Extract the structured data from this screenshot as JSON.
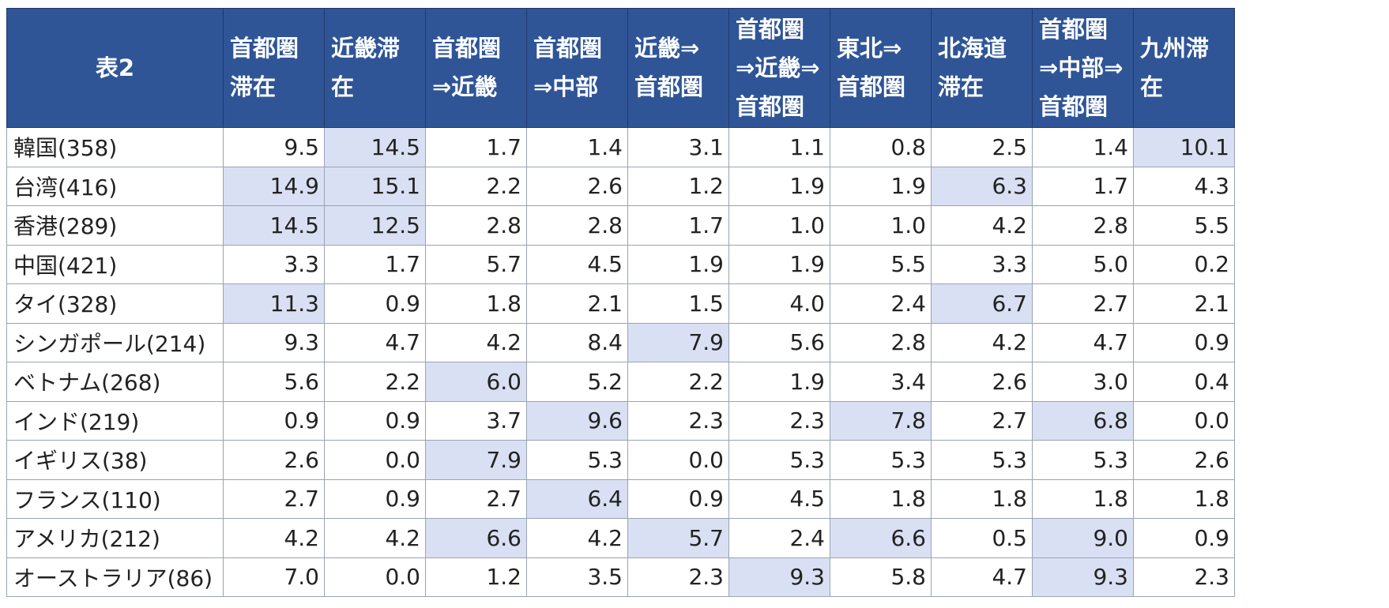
{
  "chart_data": {
    "type": "table",
    "title": "表2",
    "columns": [
      "首都圏滞在",
      "近畿滞在",
      "首都圏⇒近畿",
      "首都圏⇒中部",
      "近畿⇒首都圏",
      "首都圏⇒近畿⇒首都圏",
      "東北⇒首都圏",
      "北海道滞在",
      "首都圏⇒中部⇒首都圏",
      "九州滞在"
    ],
    "rows": [
      {
        "label": "韓国(358)",
        "values": [
          "9.5",
          "14.5",
          "1.7",
          "1.4",
          "3.1",
          "1.1",
          "0.8",
          "2.5",
          "1.4",
          "10.1"
        ],
        "highlight": [
          1,
          9
        ]
      },
      {
        "label": "台湾(416)",
        "values": [
          "14.9",
          "15.1",
          "2.2",
          "2.6",
          "1.2",
          "1.9",
          "1.9",
          "6.3",
          "1.7",
          "4.3"
        ],
        "highlight": [
          0,
          1,
          7
        ]
      },
      {
        "label": "香港(289)",
        "values": [
          "14.5",
          "12.5",
          "2.8",
          "2.8",
          "1.7",
          "1.0",
          "1.0",
          "4.2",
          "2.8",
          "5.5"
        ],
        "highlight": [
          0,
          1
        ]
      },
      {
        "label": "中国(421)",
        "values": [
          "3.3",
          "1.7",
          "5.7",
          "4.5",
          "1.9",
          "1.9",
          "5.5",
          "3.3",
          "5.0",
          "0.2"
        ],
        "highlight": []
      },
      {
        "label": "タイ(328)",
        "values": [
          "11.3",
          "0.9",
          "1.8",
          "2.1",
          "1.5",
          "4.0",
          "2.4",
          "6.7",
          "2.7",
          "2.1"
        ],
        "highlight": [
          0,
          7
        ]
      },
      {
        "label": "シンガポール(214)",
        "values": [
          "9.3",
          "4.7",
          "4.2",
          "8.4",
          "7.9",
          "5.6",
          "2.8",
          "4.2",
          "4.7",
          "0.9"
        ],
        "highlight": [
          4
        ]
      },
      {
        "label": "ベトナム(268)",
        "values": [
          "5.6",
          "2.2",
          "6.0",
          "5.2",
          "2.2",
          "1.9",
          "3.4",
          "2.6",
          "3.0",
          "0.4"
        ],
        "highlight": [
          2
        ]
      },
      {
        "label": "インド(219)",
        "values": [
          "0.9",
          "0.9",
          "3.7",
          "9.6",
          "2.3",
          "2.3",
          "7.8",
          "2.7",
          "6.8",
          "0.0"
        ],
        "highlight": [
          3,
          6,
          8
        ]
      },
      {
        "label": "イギリス(38)",
        "values": [
          "2.6",
          "0.0",
          "7.9",
          "5.3",
          "0.0",
          "5.3",
          "5.3",
          "5.3",
          "5.3",
          "2.6"
        ],
        "highlight": [
          2
        ]
      },
      {
        "label": "フランス(110)",
        "values": [
          "2.7",
          "0.9",
          "2.7",
          "6.4",
          "0.9",
          "4.5",
          "1.8",
          "1.8",
          "1.8",
          "1.8"
        ],
        "highlight": [
          3
        ]
      },
      {
        "label": "アメリカ(212)",
        "values": [
          "4.2",
          "4.2",
          "6.6",
          "4.2",
          "5.7",
          "2.4",
          "6.6",
          "0.5",
          "9.0",
          "0.9"
        ],
        "highlight": [
          2,
          4,
          6,
          8
        ]
      },
      {
        "label": "オーストラリア(86)",
        "values": [
          "7.0",
          "0.0",
          "1.2",
          "3.5",
          "2.3",
          "9.3",
          "5.8",
          "4.7",
          "9.3",
          "2.3"
        ],
        "highlight": [
          5,
          8
        ]
      }
    ]
  },
  "colors": {
    "header_bg": "#2f5597",
    "header_text": "#ffffff",
    "highlight_bg": "#d9e0f3",
    "grid": "#9aa3b5"
  }
}
